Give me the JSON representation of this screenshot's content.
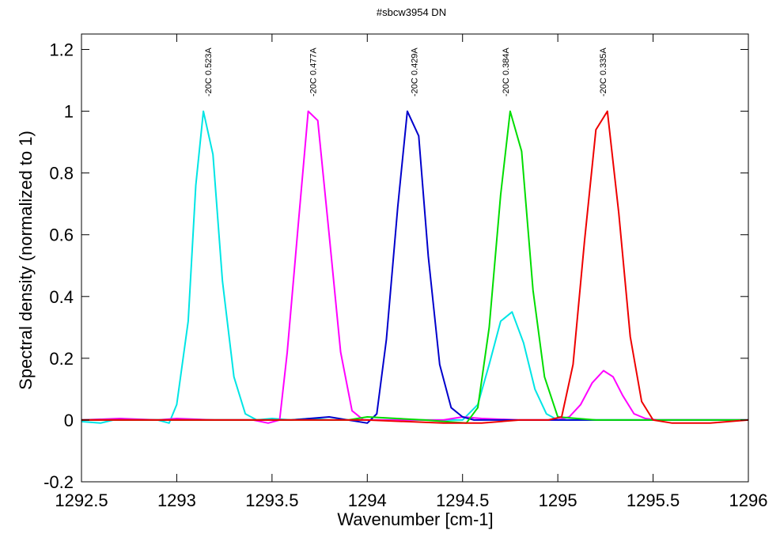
{
  "chart_data": {
    "type": "line",
    "title": "#sbcw3954 DN",
    "xlabel": "Wavenumber [cm-1]",
    "ylabel": "Spectral density (normalized to 1)",
    "xlim": [
      1292.5,
      1296
    ],
    "ylim": [
      -0.2,
      1.25
    ],
    "xticks": [
      1292.5,
      1293,
      1293.5,
      1294,
      1294.5,
      1295,
      1295.5,
      1296
    ],
    "xtick_labels": [
      "1292.5",
      "1293",
      "1293.5",
      "1294",
      "1294.5",
      "1295",
      "1295.5",
      "1296"
    ],
    "yticks": [
      -0.2,
      0,
      0.2,
      0.4,
      0.6,
      0.8,
      1,
      1.2
    ],
    "ytick_labels": [
      "-0.2",
      "0",
      "0.2",
      "0.4",
      "0.6",
      "0.8",
      "1",
      "1.2"
    ],
    "grid": false,
    "legend": "none",
    "annotations": [
      {
        "text": "-20C 0.523A",
        "x": 1293.19
      },
      {
        "text": "-20C 0.477A",
        "x": 1293.74
      },
      {
        "text": "-20C 0.429A",
        "x": 1294.27
      },
      {
        "text": "-20C 0.384A",
        "x": 1294.75
      },
      {
        "text": "-20C 0.335A",
        "x": 1295.26
      }
    ],
    "series": [
      {
        "color": "#00e5e5",
        "x": [
          1292.5,
          1292.6,
          1292.7,
          1292.8,
          1292.9,
          1292.96,
          1293.0,
          1293.06,
          1293.1,
          1293.14,
          1293.19,
          1293.24,
          1293.3,
          1293.36,
          1293.42,
          1293.5,
          1293.6,
          1293.7,
          1293.8,
          1294.0,
          1294.2,
          1294.4,
          1294.5,
          1294.58,
          1294.64,
          1294.7,
          1294.76,
          1294.82,
          1294.88,
          1294.94,
          1295.0,
          1295.2,
          1295.5,
          1296.0
        ],
        "y": [
          -0.005,
          -0.01,
          0.005,
          0.0,
          0.0,
          -0.01,
          0.05,
          0.32,
          0.76,
          1.0,
          0.86,
          0.45,
          0.14,
          0.02,
          0.0,
          0.005,
          0.0,
          0.005,
          0.0,
          0.0,
          0.0,
          0.0,
          0.0,
          0.05,
          0.18,
          0.32,
          0.35,
          0.25,
          0.1,
          0.02,
          0.0,
          0.0,
          0.0,
          0.0
        ]
      },
      {
        "color": "#ff00ff",
        "x": [
          1292.5,
          1292.7,
          1292.9,
          1293.0,
          1293.2,
          1293.4,
          1293.48,
          1293.54,
          1293.58,
          1293.64,
          1293.69,
          1293.74,
          1293.8,
          1293.86,
          1293.92,
          1293.98,
          1294.04,
          1294.2,
          1294.4,
          1294.5,
          1294.6,
          1294.8,
          1295.0,
          1295.06,
          1295.12,
          1295.18,
          1295.24,
          1295.29,
          1295.34,
          1295.4,
          1295.46,
          1295.52,
          1295.7,
          1296.0
        ],
        "y": [
          0.0,
          0.005,
          0.0,
          0.005,
          0.0,
          0.0,
          -0.01,
          0.0,
          0.22,
          0.65,
          1.0,
          0.97,
          0.6,
          0.22,
          0.03,
          0.0,
          0.0,
          0.0,
          0.0,
          0.01,
          0.005,
          0.0,
          0.0,
          0.01,
          0.05,
          0.12,
          0.16,
          0.14,
          0.08,
          0.02,
          0.005,
          0.0,
          0.0,
          0.0
        ]
      },
      {
        "color": "#0000cc",
        "x": [
          1292.5,
          1292.7,
          1293.0,
          1293.3,
          1293.6,
          1293.8,
          1294.0,
          1294.05,
          1294.1,
          1294.16,
          1294.21,
          1294.27,
          1294.32,
          1294.38,
          1294.44,
          1294.5,
          1294.56,
          1294.62,
          1294.8,
          1295.0,
          1295.3,
          1295.6,
          1296.0
        ],
        "y": [
          0.0,
          0.0,
          0.0,
          0.0,
          0.0,
          0.01,
          -0.01,
          0.02,
          0.26,
          0.69,
          1.0,
          0.92,
          0.53,
          0.18,
          0.04,
          0.01,
          0.0,
          0.0,
          0.0,
          0.0,
          0.0,
          0.0,
          0.0
        ]
      },
      {
        "color": "#00dd00",
        "x": [
          1292.5,
          1292.8,
          1293.2,
          1293.6,
          1293.9,
          1294.0,
          1294.3,
          1294.52,
          1294.58,
          1294.64,
          1294.7,
          1294.75,
          1294.81,
          1294.87,
          1294.93,
          1295.0,
          1295.2,
          1295.5,
          1296.0
        ],
        "y": [
          0.0,
          0.0,
          0.0,
          0.0,
          0.0,
          0.01,
          0.0,
          -0.01,
          0.04,
          0.3,
          0.73,
          1.0,
          0.87,
          0.42,
          0.14,
          0.01,
          0.0,
          0.0,
          0.0
        ]
      },
      {
        "color": "#ee0000",
        "x": [
          1292.5,
          1292.8,
          1293.2,
          1293.6,
          1294.0,
          1294.4,
          1294.6,
          1294.8,
          1294.95,
          1295.02,
          1295.08,
          1295.14,
          1295.2,
          1295.26,
          1295.32,
          1295.38,
          1295.44,
          1295.5,
          1295.6,
          1295.8,
          1296.0
        ],
        "y": [
          0.0,
          0.0,
          0.0,
          0.0,
          0.0,
          -0.01,
          -0.01,
          0.0,
          0.0,
          0.01,
          0.18,
          0.58,
          0.94,
          1.0,
          0.67,
          0.27,
          0.06,
          0.0,
          -0.01,
          -0.01,
          0.0
        ]
      }
    ]
  }
}
